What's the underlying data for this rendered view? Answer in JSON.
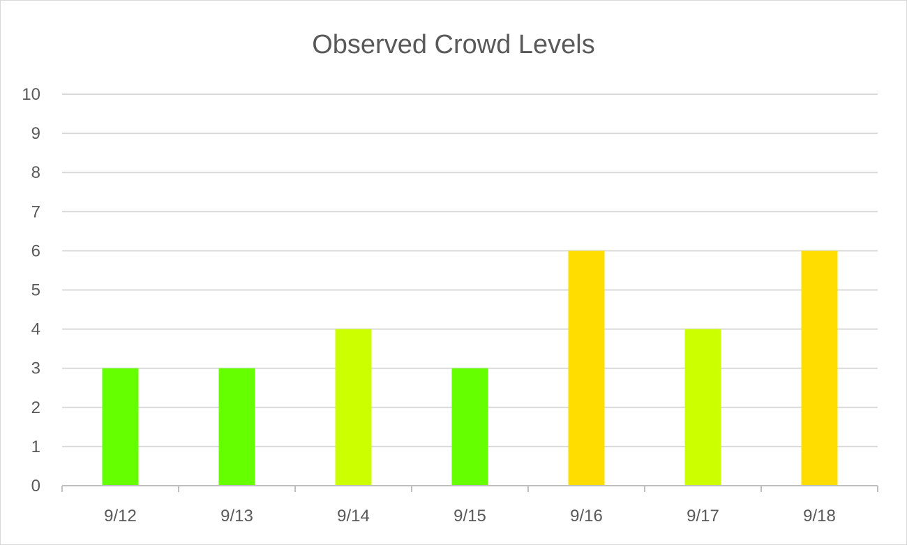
{
  "chart_data": {
    "type": "bar",
    "title": "Observed Crowd Levels",
    "xlabel": "",
    "ylabel": "",
    "categories": [
      "9/12",
      "9/13",
      "9/14",
      "9/15",
      "9/16",
      "9/17",
      "9/18"
    ],
    "values": [
      3,
      3,
      4,
      3,
      6,
      4,
      6
    ],
    "bar_colors": [
      "#66ff00",
      "#66ff00",
      "#ccff00",
      "#66ff00",
      "#ffdd00",
      "#ccff00",
      "#ffdd00"
    ],
    "ylim": [
      0,
      10
    ],
    "yticks": [
      0,
      1,
      2,
      3,
      4,
      5,
      6,
      7,
      8,
      9,
      10
    ],
    "grid": true,
    "legend": "none",
    "gridline_color": "#d9d9d9",
    "axis_color": "#bfbfbf",
    "text_color": "#595959"
  }
}
